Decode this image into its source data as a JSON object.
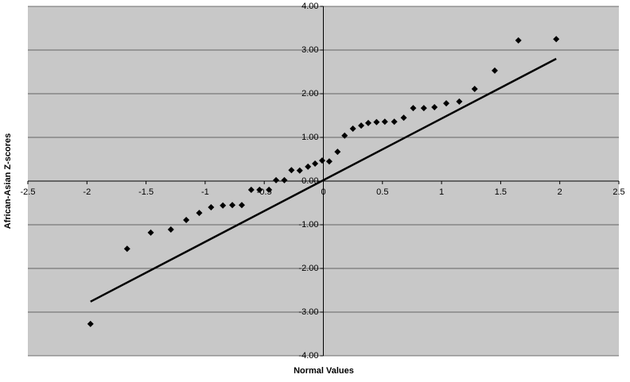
{
  "chart_data": {
    "type": "scatter",
    "xlabel": "Normal Values",
    "ylabel": "African-Asian Z-scores",
    "xlim": [
      -2.5,
      2.5
    ],
    "ylim": [
      -4,
      4
    ],
    "xticks": [
      -2.5,
      -2,
      -1.5,
      -1,
      -0.5,
      0,
      0.5,
      1,
      1.5,
      2,
      2.5
    ],
    "yticks": [
      {
        "value": -4,
        "label": "-4.00"
      },
      {
        "value": -3,
        "label": "-3.00"
      },
      {
        "value": -2,
        "label": "-2.00"
      },
      {
        "value": -1,
        "label": "-1.00"
      },
      {
        "value": 0,
        "label": "0.00"
      },
      {
        "value": 1,
        "label": "1.00"
      },
      {
        "value": 2,
        "label": "2.00"
      },
      {
        "value": 3,
        "label": "3.00"
      },
      {
        "value": 4,
        "label": "4.00"
      }
    ],
    "grid": true,
    "series": [
      {
        "type": "scatter",
        "color": "#000000",
        "x": [
          -1.97,
          -1.66,
          -1.46,
          -1.29,
          -1.16,
          -1.05,
          -0.95,
          -0.85,
          -0.77,
          -0.69,
          -0.61,
          -0.54,
          -0.46,
          -0.4,
          -0.33,
          -0.27,
          -0.2,
          -0.13,
          -0.07,
          -0.01,
          0.05,
          0.12,
          0.18,
          0.25,
          0.32,
          0.38,
          0.45,
          0.52,
          0.6,
          0.68,
          0.76,
          0.85,
          0.94,
          1.04,
          1.15,
          1.28,
          1.45,
          1.65,
          1.97
        ],
        "values": [
          -3.27,
          -1.55,
          -1.18,
          -1.11,
          -0.89,
          -0.73,
          -0.6,
          -0.56,
          -0.55,
          -0.55,
          -0.2,
          -0.2,
          -0.2,
          0.02,
          0.02,
          0.25,
          0.24,
          0.33,
          0.4,
          0.47,
          0.45,
          0.67,
          1.04,
          1.2,
          1.27,
          1.33,
          1.35,
          1.36,
          1.36,
          1.45,
          1.67,
          1.67,
          1.69,
          1.78,
          1.82,
          2.11,
          2.53,
          3.22,
          3.25
        ]
      },
      {
        "type": "line",
        "color": "#000000",
        "x": [
          -1.97,
          1.97
        ],
        "values": [
          -2.76,
          2.8
        ]
      }
    ]
  }
}
